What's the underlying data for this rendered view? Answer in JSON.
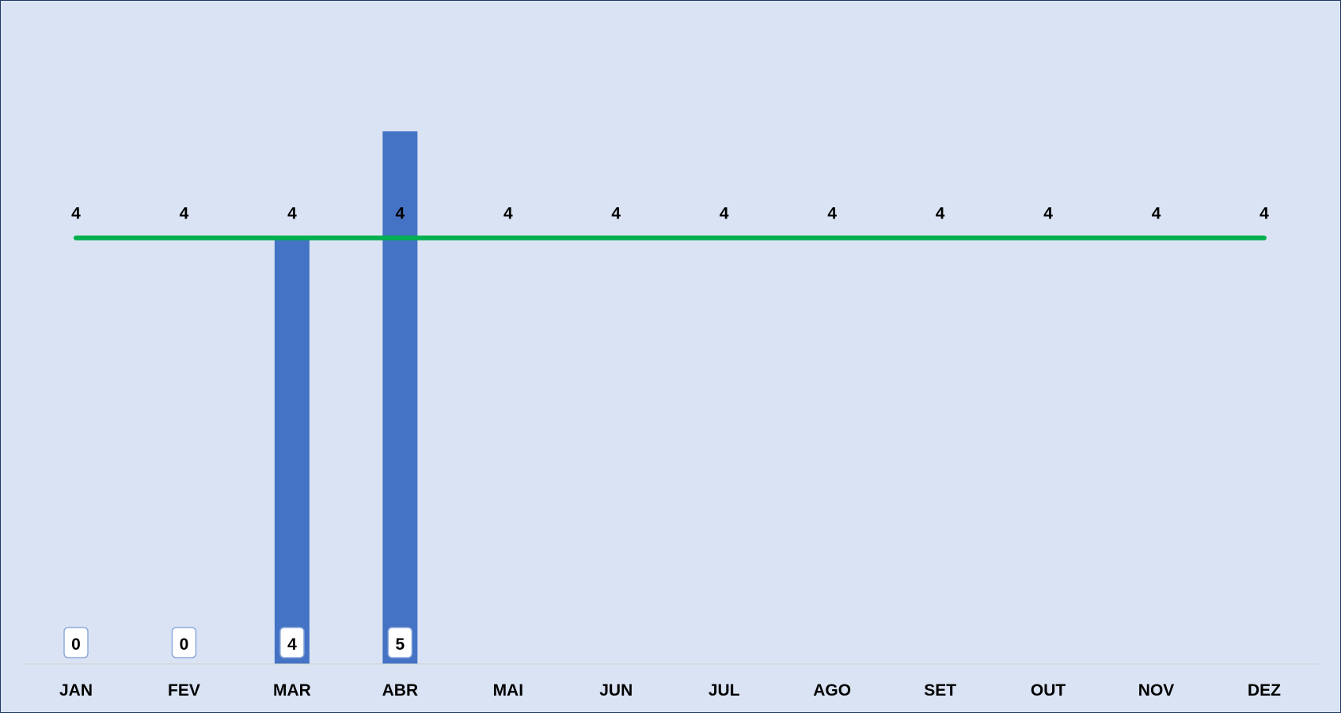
{
  "chart_data": {
    "type": "bar",
    "categories": [
      "JAN",
      "FEV",
      "MAR",
      "ABR",
      "MAI",
      "JUN",
      "JUL",
      "AGO",
      "SET",
      "OUT",
      "NOV",
      "DEZ"
    ],
    "series": [
      {
        "type": "bar",
        "values": [
          0,
          0,
          4,
          5,
          null,
          null,
          null,
          null,
          null,
          null,
          null,
          null
        ],
        "color": "#4472c4"
      },
      {
        "type": "line",
        "values": [
          4,
          4,
          4,
          4,
          4,
          4,
          4,
          4,
          4,
          4,
          4,
          4
        ],
        "color": "#00b050"
      }
    ],
    "ylim": [
      0,
      6
    ],
    "grid": false,
    "legend": "none",
    "background": "#dae3f3"
  }
}
